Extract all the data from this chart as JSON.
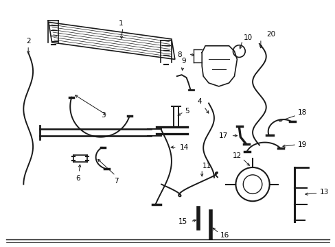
{
  "bg_color": "#ffffff",
  "figsize": [
    4.89,
    3.6
  ],
  "dpi": 100,
  "line_color": "#1a1a1a",
  "lw": 1.4,
  "thin_lw": 0.8,
  "label_fontsize": 7.5
}
